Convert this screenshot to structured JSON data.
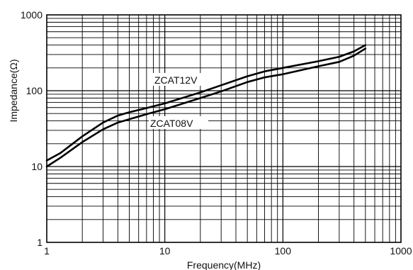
{
  "chart_data": {
    "type": "line",
    "xlabel": "Frequency(MHz)",
    "ylabel": "Impedance(Ω)",
    "x_scale": "log",
    "y_scale": "log",
    "xlim": [
      1,
      1000
    ],
    "ylim": [
      1,
      1000
    ],
    "grid": true,
    "x_ticks": [
      1,
      10,
      100,
      1000
    ],
    "y_ticks": [
      1,
      10,
      100,
      1000
    ],
    "x_tick_labels": [
      "1",
      "10",
      "100",
      "1000"
    ],
    "y_tick_labels": [
      "1",
      "10",
      "100",
      "1000"
    ],
    "series": [
      {
        "name": "ZCAT12V",
        "x": [
          1,
          1.3,
          2,
          3,
          4,
          5,
          7,
          10,
          20,
          30,
          50,
          70,
          100,
          200,
          300,
          400,
          500
        ],
        "y": [
          12,
          15,
          25,
          38,
          47,
          52,
          59,
          68,
          95,
          118,
          155,
          180,
          200,
          245,
          280,
          330,
          400
        ]
      },
      {
        "name": "ZCAT08V",
        "x": [
          1,
          1.3,
          2,
          3,
          4,
          5,
          7,
          10,
          20,
          30,
          50,
          70,
          100,
          200,
          300,
          400,
          500
        ],
        "y": [
          10,
          13,
          21,
          31,
          38,
          42,
          49,
          57,
          80,
          98,
          130,
          150,
          165,
          210,
          240,
          290,
          360
        ]
      }
    ]
  }
}
